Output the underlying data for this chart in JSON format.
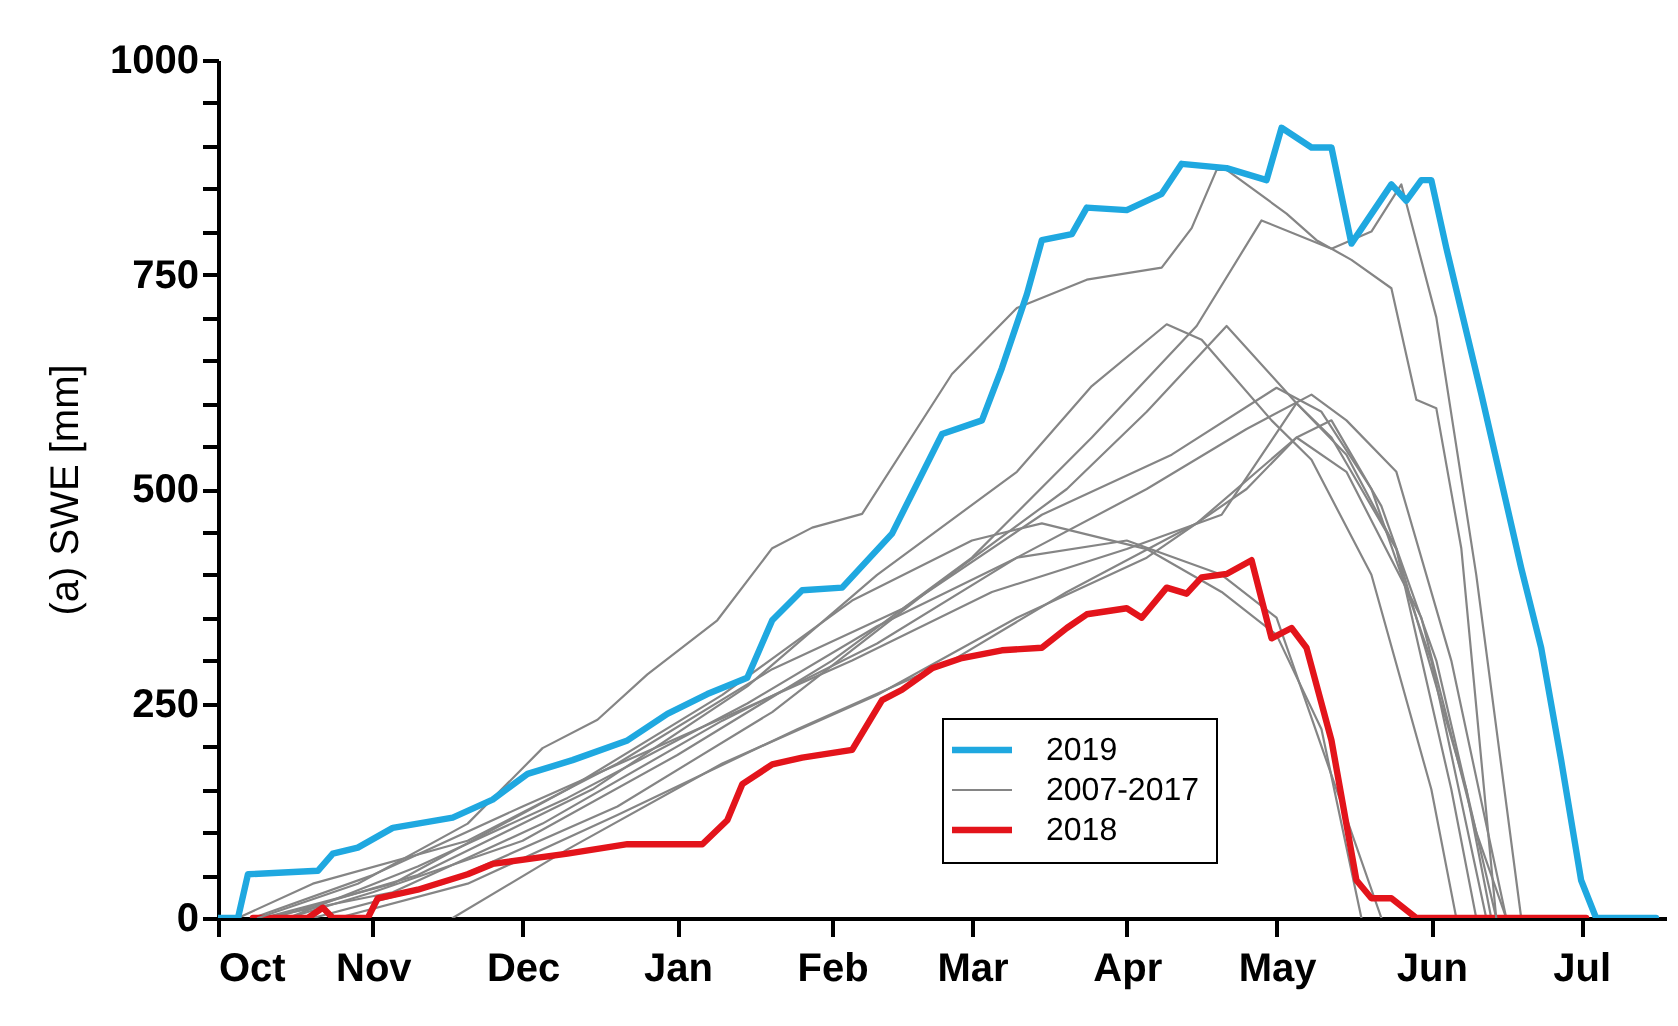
{
  "chart_data": {
    "type": "line",
    "ylabel": "(a) SWE [mm]",
    "xlim": [
      "2018-10-01",
      "2019-07-18"
    ],
    "xticks": [
      {
        "value": "2018-10-01",
        "label": "Oct"
      },
      {
        "value": "2018-11-01",
        "label": "Nov"
      },
      {
        "value": "2018-12-01",
        "label": "Dec"
      },
      {
        "value": "2019-01-01",
        "label": "Jan"
      },
      {
        "value": "2019-02-01",
        "label": "Feb"
      },
      {
        "value": "2019-03-01",
        "label": "Mar"
      },
      {
        "value": "2019-04-01",
        "label": "Apr"
      },
      {
        "value": "2019-05-01",
        "label": "May"
      },
      {
        "value": "2019-06-01",
        "label": "Jun"
      },
      {
        "value": "2019-07-01",
        "label": "Jul"
      }
    ],
    "ylim": [
      0,
      1000
    ],
    "yticks": [
      0,
      {
        "value": 50,
        "label": null
      },
      {
        "value": 100,
        "label": null
      },
      {
        "value": 150,
        "label": null
      },
      {
        "value": 200,
        "label": null
      },
      250,
      {
        "value": 300,
        "label": null
      },
      {
        "value": 350,
        "label": null
      },
      {
        "value": 400,
        "label": null
      },
      {
        "value": 450,
        "label": null
      },
      500,
      {
        "value": 550,
        "label": null
      },
      {
        "value": 600,
        "label": null
      },
      {
        "value": 650,
        "label": null
      },
      {
        "value": 700,
        "label": null
      },
      750,
      {
        "value": 800,
        "label": null
      },
      {
        "value": 850,
        "label": null
      },
      {
        "value": 900,
        "label": null
      },
      {
        "value": 950,
        "label": null
      },
      1000
    ],
    "grid": false,
    "legend": "bottom right",
    "marker": "none",
    "line_style": "solid",
    "series": [
      {
        "name": "2019",
        "color": "#1fa8e0",
        "x": [
          "2018-10-01",
          "2018-10-05",
          "2018-10-07",
          "2018-10-21",
          "2018-10-24",
          "2018-10-29",
          "2018-11-05",
          "2018-11-10",
          "2018-11-17",
          "2018-11-25",
          "2018-12-02",
          "2018-12-11",
          "2018-12-22",
          "2018-12-30",
          "2019-01-07",
          "2019-01-15",
          "2019-01-20",
          "2019-01-26",
          "2019-02-03",
          "2019-02-13",
          "2019-02-23",
          "2019-03-03",
          "2019-03-07",
          "2019-03-12",
          "2019-03-15",
          "2019-03-21",
          "2019-03-24",
          "2019-04-01",
          "2019-04-08",
          "2019-04-12",
          "2019-04-21",
          "2019-04-29",
          "2019-05-02",
          "2019-05-08",
          "2019-05-12",
          "2019-05-16",
          "2019-05-24",
          "2019-05-27",
          "2019-05-30",
          "2019-06-01",
          "2019-06-04",
          "2019-06-11",
          "2019-06-19",
          "2019-06-23",
          "2019-06-27",
          "2019-07-01",
          "2019-07-04",
          "2019-07-16"
        ],
        "values": [
          0,
          0,
          51,
          55,
          75,
          82,
          105,
          110,
          117,
          138,
          168,
          184,
          207,
          238,
          261,
          280,
          347,
          382,
          385,
          448,
          564,
          580,
          641,
          727,
          790,
          797,
          828,
          825,
          844,
          879,
          874,
          860,
          921,
          898,
          898,
          786,
          855,
          836,
          860,
          860,
          781,
          611,
          408,
          315,
          184,
          44,
          0,
          0
        ]
      },
      {
        "name": "2007-2017",
        "color": "#858585",
        "x": [
          "2018-10-09",
          "2018-10-29",
          "2018-11-20",
          "2018-12-05",
          "2018-12-16",
          "2018-12-26",
          "2019-01-09",
          "2019-01-20",
          "2019-01-28",
          "2019-02-07",
          "2019-02-25",
          "2019-03-10",
          "2019-03-24",
          "2019-04-08",
          "2019-04-14",
          "2019-04-19",
          "2019-04-21",
          "2019-05-03",
          "2019-05-09",
          "2019-05-16",
          "2019-05-24",
          "2019-05-29",
          "2019-06-02",
          "2019-06-07",
          "2019-06-14"
        ],
        "values": [
          0,
          40,
          110,
          198,
          231,
          284,
          347,
          431,
          455,
          471,
          634,
          711,
          744,
          758,
          804,
          872,
          872,
          821,
          790,
          767,
          734,
          604,
          594,
          431,
          0
        ]
      },
      {
        "name": "2018",
        "color": "#e3141b",
        "x": [
          "2018-10-08",
          "2018-10-19",
          "2018-10-22",
          "2018-10-24",
          "2018-10-31",
          "2018-11-02",
          "2018-11-10",
          "2018-11-20",
          "2018-11-25",
          "2018-12-10",
          "2018-12-22",
          "2019-01-06",
          "2019-01-11",
          "2019-01-14",
          "2019-01-20",
          "2019-01-26",
          "2019-02-05",
          "2019-02-11",
          "2019-02-15",
          "2019-02-21",
          "2019-02-27",
          "2019-03-07",
          "2019-03-15",
          "2019-03-20",
          "2019-03-24",
          "2019-04-01",
          "2019-04-04",
          "2019-04-09",
          "2019-04-13",
          "2019-04-16",
          "2019-04-21",
          "2019-04-26",
          "2019-04-30",
          "2019-05-04",
          "2019-05-07",
          "2019-05-12",
          "2019-05-17",
          "2019-05-20",
          "2019-05-24",
          "2019-05-29",
          "2019-07-02"
        ],
        "values": [
          0,
          0,
          12,
          0,
          0,
          23,
          33,
          51,
          63,
          75,
          86,
          86,
          114,
          156,
          179,
          187,
          196,
          254,
          266,
          291,
          303,
          312,
          315,
          338,
          354,
          361,
          350,
          385,
          378,
          397,
          401,
          417,
          326,
          338,
          315,
          207,
          44,
          23,
          23,
          0,
          0
        ]
      },
      {
        "color": "#858585",
        "x": [
          "2018-10-15",
          "2018-11-01",
          "2018-12-01",
          "2019-01-01",
          "2019-02-01",
          "2019-03-01",
          "2019-03-25",
          "2019-04-15",
          "2019-04-28",
          "2019-05-12",
          "2019-05-20",
          "2019-05-26",
          "2019-06-02",
          "2019-06-10",
          "2019-06-19"
        ],
        "values": [
          0,
          30,
          90,
          190,
          300,
          420,
          560,
          690,
          813,
          780,
          800,
          855,
          700,
          400,
          0
        ]
      },
      {
        "color": "#858585",
        "x": [
          "2018-10-12",
          "2018-11-10",
          "2018-12-15",
          "2019-01-15",
          "2019-02-10",
          "2019-03-10",
          "2019-03-25",
          "2019-04-09",
          "2019-04-16",
          "2019-04-30",
          "2019-05-08",
          "2019-05-20",
          "2019-06-01",
          "2019-06-06"
        ],
        "values": [
          0,
          50,
          150,
          270,
          400,
          520,
          620,
          692,
          674,
          580,
          534,
          400,
          150,
          0
        ]
      },
      {
        "color": "#858585",
        "x": [
          "2018-10-20",
          "2018-11-15",
          "2018-12-20",
          "2019-01-20",
          "2019-02-20",
          "2019-03-20",
          "2019-04-05",
          "2019-04-21",
          "2019-05-05",
          "2019-05-15",
          "2019-05-25",
          "2019-06-05",
          "2019-06-10"
        ],
        "values": [
          0,
          40,
          130,
          240,
          380,
          500,
          590,
          690,
          600,
          540,
          430,
          150,
          0
        ]
      },
      {
        "color": "#858585",
        "x": [
          "2018-10-05",
          "2018-10-20",
          "2018-11-20",
          "2018-12-20",
          "2019-01-20",
          "2019-02-15",
          "2019-03-15",
          "2019-04-10",
          "2019-05-01",
          "2019-05-10",
          "2019-05-20",
          "2019-06-01",
          "2019-06-12"
        ],
        "values": [
          0,
          40,
          90,
          180,
          290,
          360,
          470,
          540,
          618,
          590,
          500,
          300,
          0
        ]
      },
      {
        "color": "#858585",
        "x": [
          "2018-10-10",
          "2018-11-05",
          "2018-12-05",
          "2019-01-10",
          "2019-02-10",
          "2019-03-10",
          "2019-04-05",
          "2019-04-25",
          "2019-05-08",
          "2019-05-15",
          "2019-05-25",
          "2019-06-05",
          "2019-06-16"
        ],
        "values": [
          0,
          30,
          110,
          230,
          320,
          420,
          500,
          570,
          610,
          580,
          520,
          300,
          0
        ]
      },
      {
        "color": "#858585",
        "x": [
          "2018-10-25",
          "2018-11-20",
          "2018-12-20",
          "2019-01-25",
          "2019-02-25",
          "2019-03-20",
          "2019-04-15",
          "2019-05-05",
          "2019-05-12",
          "2019-05-22",
          "2019-06-02",
          "2019-06-14"
        ],
        "values": [
          0,
          40,
          120,
          220,
          300,
          380,
          460,
          560,
          580,
          480,
          300,
          0
        ]
      },
      {
        "color": "#858585",
        "x": [
          "2018-10-08",
          "2018-11-01",
          "2018-12-01",
          "2019-01-05",
          "2019-02-05",
          "2019-03-05",
          "2019-04-01",
          "2019-04-20",
          "2019-05-05",
          "2019-05-12",
          "2019-05-25",
          "2019-06-08",
          "2019-06-13"
        ],
        "values": [
          0,
          50,
          130,
          220,
          300,
          380,
          430,
          470,
          600,
          560,
          430,
          150,
          0
        ]
      },
      {
        "color": "#858585",
        "x": [
          "2018-11-17",
          "2018-12-10",
          "2019-01-10",
          "2019-02-10",
          "2019-03-10",
          "2019-04-05",
          "2019-04-25",
          "2019-05-05",
          "2019-05-15",
          "2019-05-30",
          "2019-06-10",
          "2019-06-16"
        ],
        "values": [
          0,
          80,
          180,
          260,
          350,
          420,
          500,
          560,
          520,
          350,
          100,
          0
        ]
      },
      {
        "color": "#858585",
        "x": [
          "2018-10-10",
          "2018-11-05",
          "2018-12-10",
          "2019-01-10",
          "2019-02-05",
          "2019-03-01",
          "2019-03-15",
          "2019-04-05",
          "2019-04-20",
          "2019-05-01",
          "2019-05-10",
          "2019-05-18"
        ],
        "values": [
          0,
          40,
          150,
          260,
          370,
          440,
          460,
          430,
          380,
          330,
          220,
          0
        ]
      },
      {
        "color": "#858585",
        "x": [
          "2018-10-15",
          "2018-11-10",
          "2018-12-10",
          "2019-01-15",
          "2019-02-10",
          "2019-03-10",
          "2019-04-01",
          "2019-04-20",
          "2019-05-01",
          "2019-05-10",
          "2019-05-22"
        ],
        "values": [
          0,
          60,
          140,
          250,
          340,
          420,
          440,
          400,
          350,
          200,
          0
        ]
      }
    ]
  }
}
